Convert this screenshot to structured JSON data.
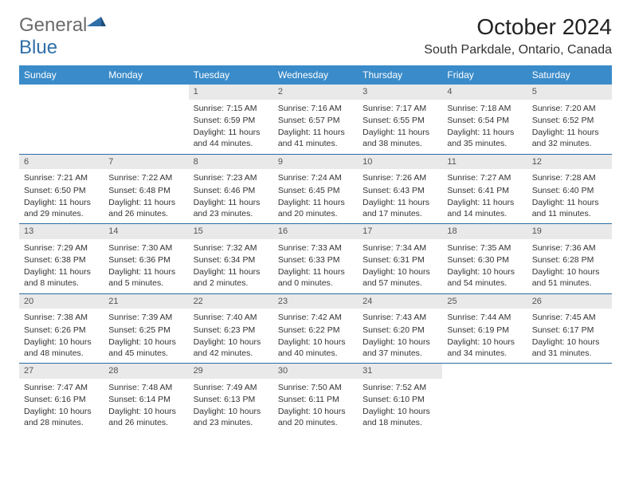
{
  "brand": {
    "word1": "General",
    "word2": "Blue"
  },
  "title": "October 2024",
  "location": "South Parkdale, Ontario, Canada",
  "colors": {
    "header_bg": "#3a8bc9",
    "header_fg": "#ffffff",
    "rule": "#2b6ca3",
    "daynum_bg": "#e9e9e9"
  },
  "weekdays": [
    "Sunday",
    "Monday",
    "Tuesday",
    "Wednesday",
    "Thursday",
    "Friday",
    "Saturday"
  ],
  "weeks": [
    [
      null,
      null,
      {
        "n": "1",
        "sr": "Sunrise: 7:15 AM",
        "ss": "Sunset: 6:59 PM",
        "dl": "Daylight: 11 hours and 44 minutes."
      },
      {
        "n": "2",
        "sr": "Sunrise: 7:16 AM",
        "ss": "Sunset: 6:57 PM",
        "dl": "Daylight: 11 hours and 41 minutes."
      },
      {
        "n": "3",
        "sr": "Sunrise: 7:17 AM",
        "ss": "Sunset: 6:55 PM",
        "dl": "Daylight: 11 hours and 38 minutes."
      },
      {
        "n": "4",
        "sr": "Sunrise: 7:18 AM",
        "ss": "Sunset: 6:54 PM",
        "dl": "Daylight: 11 hours and 35 minutes."
      },
      {
        "n": "5",
        "sr": "Sunrise: 7:20 AM",
        "ss": "Sunset: 6:52 PM",
        "dl": "Daylight: 11 hours and 32 minutes."
      }
    ],
    [
      {
        "n": "6",
        "sr": "Sunrise: 7:21 AM",
        "ss": "Sunset: 6:50 PM",
        "dl": "Daylight: 11 hours and 29 minutes."
      },
      {
        "n": "7",
        "sr": "Sunrise: 7:22 AM",
        "ss": "Sunset: 6:48 PM",
        "dl": "Daylight: 11 hours and 26 minutes."
      },
      {
        "n": "8",
        "sr": "Sunrise: 7:23 AM",
        "ss": "Sunset: 6:46 PM",
        "dl": "Daylight: 11 hours and 23 minutes."
      },
      {
        "n": "9",
        "sr": "Sunrise: 7:24 AM",
        "ss": "Sunset: 6:45 PM",
        "dl": "Daylight: 11 hours and 20 minutes."
      },
      {
        "n": "10",
        "sr": "Sunrise: 7:26 AM",
        "ss": "Sunset: 6:43 PM",
        "dl": "Daylight: 11 hours and 17 minutes."
      },
      {
        "n": "11",
        "sr": "Sunrise: 7:27 AM",
        "ss": "Sunset: 6:41 PM",
        "dl": "Daylight: 11 hours and 14 minutes."
      },
      {
        "n": "12",
        "sr": "Sunrise: 7:28 AM",
        "ss": "Sunset: 6:40 PM",
        "dl": "Daylight: 11 hours and 11 minutes."
      }
    ],
    [
      {
        "n": "13",
        "sr": "Sunrise: 7:29 AM",
        "ss": "Sunset: 6:38 PM",
        "dl": "Daylight: 11 hours and 8 minutes."
      },
      {
        "n": "14",
        "sr": "Sunrise: 7:30 AM",
        "ss": "Sunset: 6:36 PM",
        "dl": "Daylight: 11 hours and 5 minutes."
      },
      {
        "n": "15",
        "sr": "Sunrise: 7:32 AM",
        "ss": "Sunset: 6:34 PM",
        "dl": "Daylight: 11 hours and 2 minutes."
      },
      {
        "n": "16",
        "sr": "Sunrise: 7:33 AM",
        "ss": "Sunset: 6:33 PM",
        "dl": "Daylight: 11 hours and 0 minutes."
      },
      {
        "n": "17",
        "sr": "Sunrise: 7:34 AM",
        "ss": "Sunset: 6:31 PM",
        "dl": "Daylight: 10 hours and 57 minutes."
      },
      {
        "n": "18",
        "sr": "Sunrise: 7:35 AM",
        "ss": "Sunset: 6:30 PM",
        "dl": "Daylight: 10 hours and 54 minutes."
      },
      {
        "n": "19",
        "sr": "Sunrise: 7:36 AM",
        "ss": "Sunset: 6:28 PM",
        "dl": "Daylight: 10 hours and 51 minutes."
      }
    ],
    [
      {
        "n": "20",
        "sr": "Sunrise: 7:38 AM",
        "ss": "Sunset: 6:26 PM",
        "dl": "Daylight: 10 hours and 48 minutes."
      },
      {
        "n": "21",
        "sr": "Sunrise: 7:39 AM",
        "ss": "Sunset: 6:25 PM",
        "dl": "Daylight: 10 hours and 45 minutes."
      },
      {
        "n": "22",
        "sr": "Sunrise: 7:40 AM",
        "ss": "Sunset: 6:23 PM",
        "dl": "Daylight: 10 hours and 42 minutes."
      },
      {
        "n": "23",
        "sr": "Sunrise: 7:42 AM",
        "ss": "Sunset: 6:22 PM",
        "dl": "Daylight: 10 hours and 40 minutes."
      },
      {
        "n": "24",
        "sr": "Sunrise: 7:43 AM",
        "ss": "Sunset: 6:20 PM",
        "dl": "Daylight: 10 hours and 37 minutes."
      },
      {
        "n": "25",
        "sr": "Sunrise: 7:44 AM",
        "ss": "Sunset: 6:19 PM",
        "dl": "Daylight: 10 hours and 34 minutes."
      },
      {
        "n": "26",
        "sr": "Sunrise: 7:45 AM",
        "ss": "Sunset: 6:17 PM",
        "dl": "Daylight: 10 hours and 31 minutes."
      }
    ],
    [
      {
        "n": "27",
        "sr": "Sunrise: 7:47 AM",
        "ss": "Sunset: 6:16 PM",
        "dl": "Daylight: 10 hours and 28 minutes."
      },
      {
        "n": "28",
        "sr": "Sunrise: 7:48 AM",
        "ss": "Sunset: 6:14 PM",
        "dl": "Daylight: 10 hours and 26 minutes."
      },
      {
        "n": "29",
        "sr": "Sunrise: 7:49 AM",
        "ss": "Sunset: 6:13 PM",
        "dl": "Daylight: 10 hours and 23 minutes."
      },
      {
        "n": "30",
        "sr": "Sunrise: 7:50 AM",
        "ss": "Sunset: 6:11 PM",
        "dl": "Daylight: 10 hours and 20 minutes."
      },
      {
        "n": "31",
        "sr": "Sunrise: 7:52 AM",
        "ss": "Sunset: 6:10 PM",
        "dl": "Daylight: 10 hours and 18 minutes."
      },
      null,
      null
    ]
  ]
}
